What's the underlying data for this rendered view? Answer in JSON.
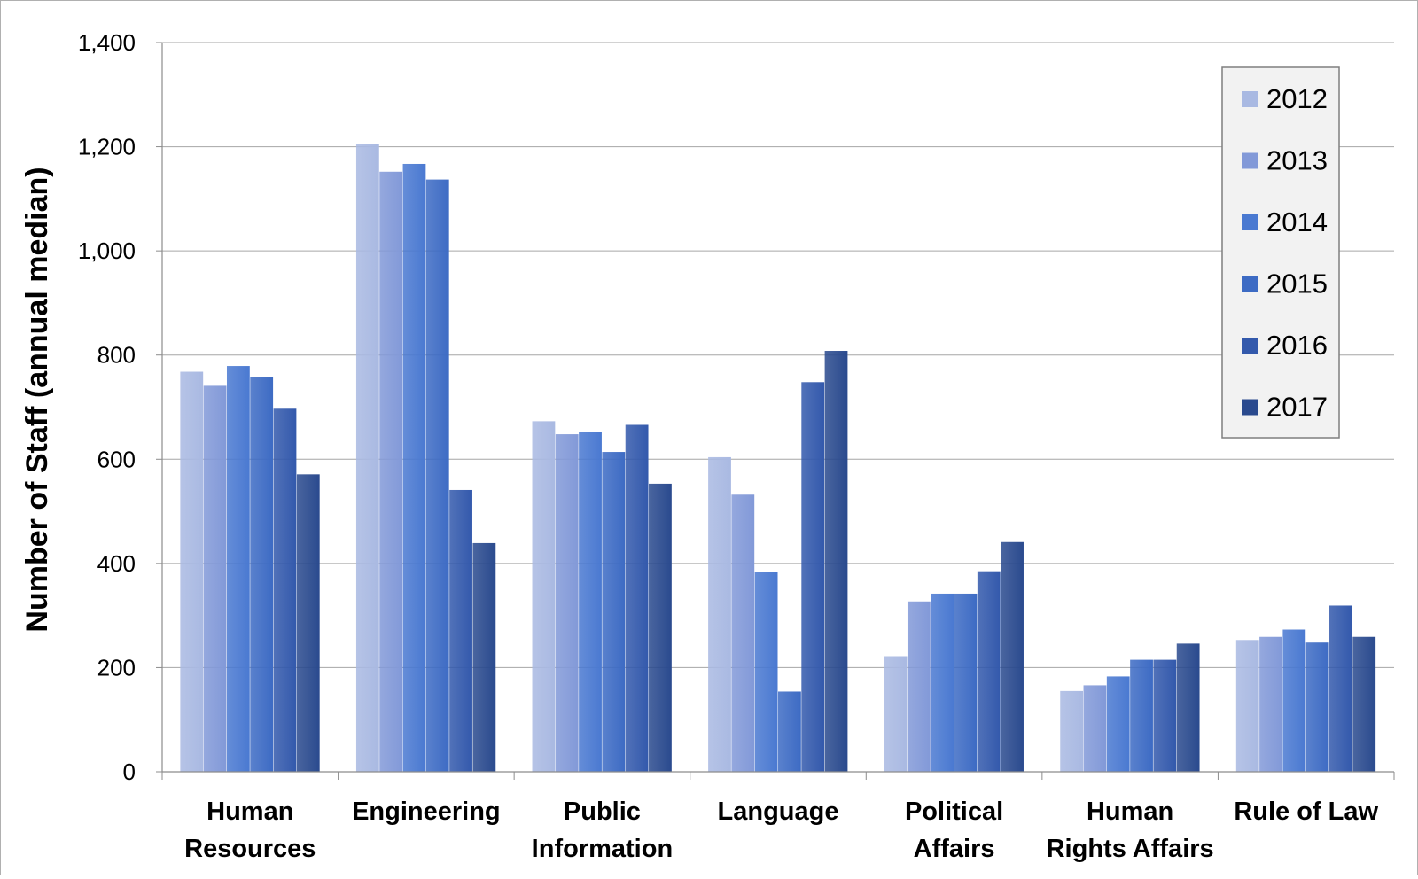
{
  "chart_data": {
    "type": "bar",
    "title": "",
    "xlabel": "",
    "ylabel": "Number of Staff (annual median)",
    "ylim": [
      0,
      1400
    ],
    "yticks": [
      0,
      200,
      400,
      600,
      800,
      1000,
      1200,
      1400
    ],
    "ytick_labels": [
      "0",
      "200",
      "400",
      "600",
      "800",
      "1,000",
      "1,200",
      "1,400"
    ],
    "grid": true,
    "legend_position": "top-right",
    "categories": [
      [
        "Human",
        "Resources"
      ],
      [
        "Engineering"
      ],
      [
        "Public",
        "Information"
      ],
      [
        "Language"
      ],
      [
        "Political",
        "Affairs"
      ],
      [
        "Human",
        "Rights Affairs"
      ],
      [
        "Rule of Law"
      ]
    ],
    "series": [
      {
        "name": "2012",
        "color": "#a9b9e2",
        "values": [
          768,
          1205,
          673,
          604,
          222,
          155,
          253
        ]
      },
      {
        "name": "2013",
        "color": "#8299d8",
        "values": [
          741,
          1152,
          648,
          532,
          327,
          166,
          259
        ]
      },
      {
        "name": "2014",
        "color": "#4a79d1",
        "values": [
          779,
          1167,
          652,
          383,
          342,
          183,
          273
        ]
      },
      {
        "name": "2015",
        "color": "#3d6bc4",
        "values": [
          757,
          1137,
          614,
          154,
          342,
          215,
          248
        ]
      },
      {
        "name": "2016",
        "color": "#3359ac",
        "values": [
          697,
          541,
          666,
          748,
          385,
          215,
          319
        ]
      },
      {
        "name": "2017",
        "color": "#2a4a8e",
        "values": [
          571,
          439,
          553,
          808,
          441,
          246,
          259
        ]
      }
    ]
  }
}
